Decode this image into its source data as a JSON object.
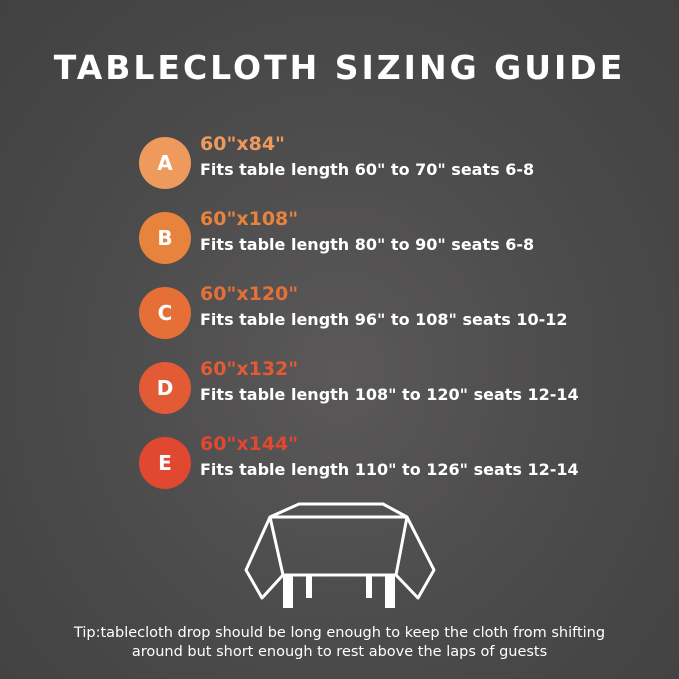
{
  "title": "TABLECLOTH SIZING GUIDE",
  "sizes": [
    {
      "letter": "A",
      "size": "60\"x84\"",
      "desc": "Fits table length 60\" to 70\" seats 6-8",
      "color": "#ee9a5c"
    },
    {
      "letter": "B",
      "size": "60\"x108\"",
      "desc": "Fits table length 80\" to 90\" seats 6-8",
      "color": "#e8833d"
    },
    {
      "letter": "C",
      "size": "60\"x120\"",
      "desc": "Fits table length 96\" to 108\" seats 10-12",
      "color": "#e56f37"
    },
    {
      "letter": "D",
      "size": "60\"x132\"",
      "desc": "Fits table length 108\" to 120\" seats 12-14",
      "color": "#e35b34"
    },
    {
      "letter": "E",
      "size": "60\"x144\"",
      "desc": "Fits table length 110\" to 126\" seats 12-14",
      "color": "#e04830"
    }
  ],
  "tip_line1": "Tip:tablecloth drop should be long enough to keep the cloth from shifting",
  "tip_line2": "around but short enough to rest above the laps of guests",
  "icon": "tablecloth-icon"
}
